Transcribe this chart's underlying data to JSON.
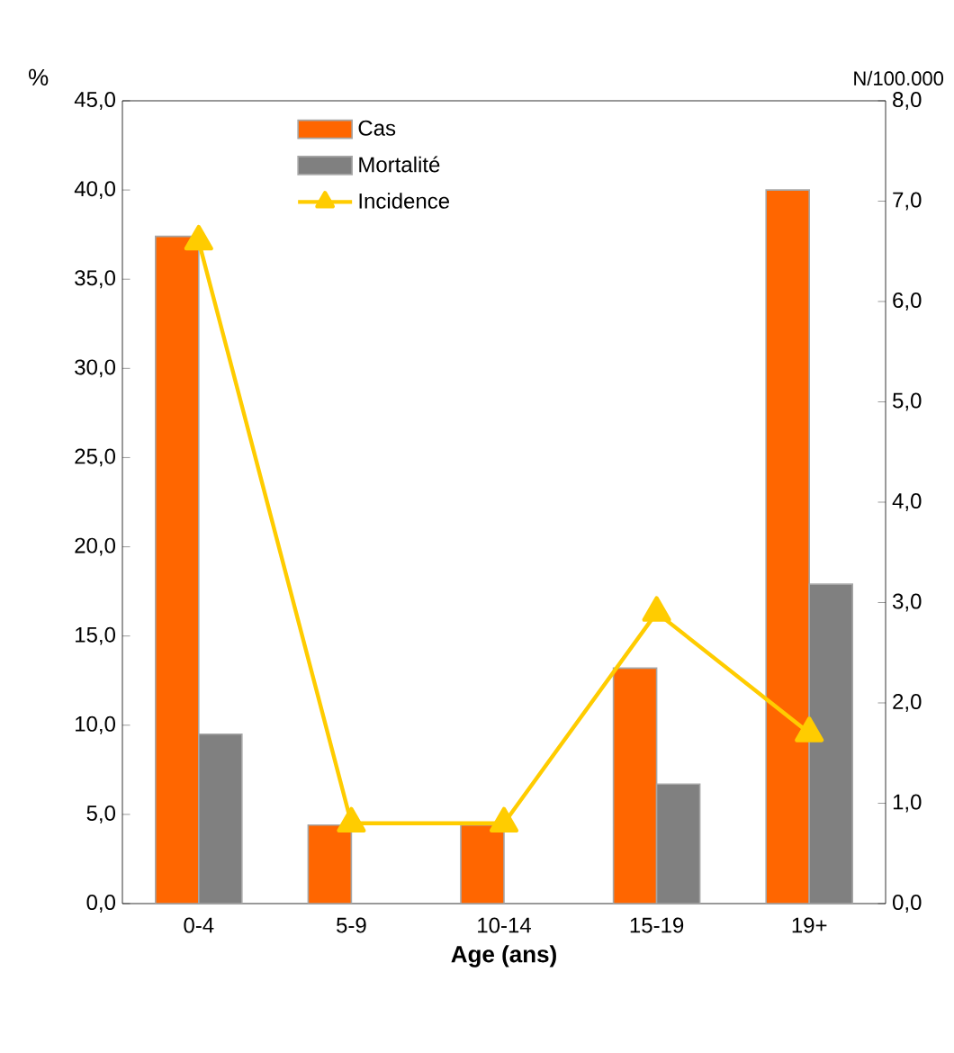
{
  "chart_data": {
    "type": "bar",
    "xlabel": "Age (ans)",
    "ylabel": "%",
    "y2label": "N/100.000",
    "legend": "top",
    "categories": [
      "0-4",
      "5-9",
      "10-14",
      "15-19",
      "19+"
    ],
    "series": [
      {
        "name": "Cas",
        "color": "#ff6600",
        "values": [
          37.4,
          4.4,
          4.4,
          13.2,
          40.0
        ]
      },
      {
        "name": "Mortalité",
        "color": "#808080",
        "values": [
          9.5,
          null,
          null,
          6.7,
          17.9
        ]
      },
      {
        "name": "Incidence",
        "type": "line",
        "axis": "y2",
        "color": "#ffcc00",
        "marker": "triangle",
        "values": [
          6.6,
          0.8,
          0.8,
          2.9,
          1.7
        ]
      }
    ],
    "ylim": [
      0,
      45
    ],
    "yticks": [
      {
        "value": 0,
        "label": "0,0"
      },
      {
        "value": 5,
        "label": "5,0"
      },
      {
        "value": 10,
        "label": "10,0"
      },
      {
        "value": 15,
        "label": "15,0"
      },
      {
        "value": 20,
        "label": "20,0"
      },
      {
        "value": 25,
        "label": "25,0"
      },
      {
        "value": 30,
        "label": "30,0"
      },
      {
        "value": 35,
        "label": "35,0"
      },
      {
        "value": 40,
        "label": "40,0"
      },
      {
        "value": 45,
        "label": "45,0"
      }
    ],
    "y2lim": [
      0,
      8
    ],
    "y2ticks": [
      {
        "value": 0,
        "label": "0,0"
      },
      {
        "value": 1,
        "label": "1,0"
      },
      {
        "value": 2,
        "label": "2,0"
      },
      {
        "value": 3,
        "label": "3,0"
      },
      {
        "value": 4,
        "label": "4,0"
      },
      {
        "value": 5,
        "label": "5,0"
      },
      {
        "value": 6,
        "label": "6,0"
      },
      {
        "value": 7,
        "label": "7,0"
      },
      {
        "value": 8,
        "label": "8,0"
      }
    ]
  }
}
